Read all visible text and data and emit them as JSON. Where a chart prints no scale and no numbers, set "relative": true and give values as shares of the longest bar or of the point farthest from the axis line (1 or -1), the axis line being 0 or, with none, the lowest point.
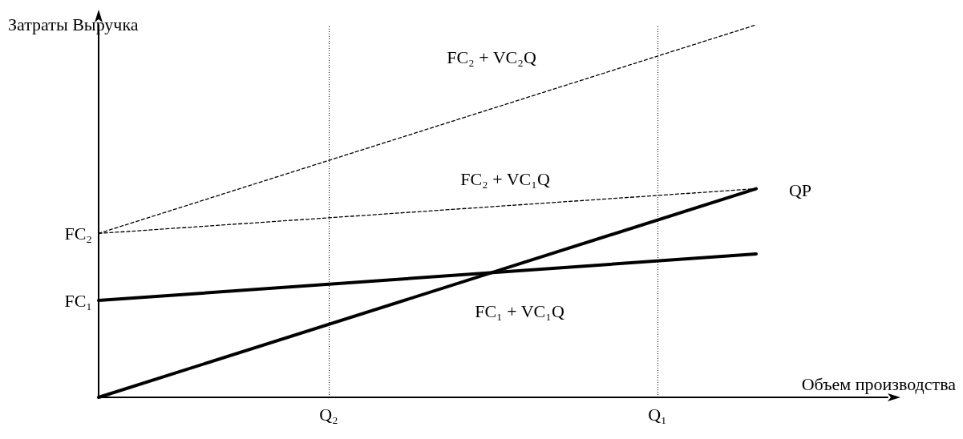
{
  "chart_data": {
    "type": "line",
    "relative": true,
    "xlabel": "Объем производства",
    "ylabel": "Затраты Выручка",
    "tick_labels": "x",
    "grid": false,
    "legend": false,
    "marker": "none",
    "categories": [
      null,
      null,
      null,
      null,
      null,
      null,
      null,
      "Q₂",
      null,
      null,
      null,
      null,
      null,
      null,
      null,
      null,
      null,
      "Q₁",
      null,
      null,
      null,
      null,
      null,
      null,
      null
    ],
    "series": [
      {
        "name": "FC₂ + VC₂Q",
        "color": "#000000",
        "line_style": "dashed",
        "values": [
          0.44,
          null,
          null,
          null,
          null,
          null,
          null,
          null,
          null,
          null,
          null,
          null,
          null,
          null,
          null,
          null,
          null,
          null,
          null,
          null,
          1,
          null,
          null,
          null,
          null
        ]
      },
      {
        "name": "FC₂ + VC₁Q",
        "color": "#000000",
        "line_style": "dashed",
        "values": [
          0.44,
          null,
          null,
          null,
          null,
          null,
          null,
          null,
          null,
          null,
          null,
          null,
          null,
          null,
          null,
          null,
          null,
          null,
          null,
          null,
          0.56,
          null,
          null,
          null,
          null
        ]
      },
      {
        "name": "QP",
        "color": "#000000",
        "line_style": "solid",
        "values": [
          0,
          null,
          null,
          null,
          null,
          null,
          null,
          null,
          null,
          null,
          null,
          null,
          null,
          null,
          null,
          null,
          null,
          null,
          null,
          null,
          0.56,
          null,
          null,
          null,
          null
        ]
      },
      {
        "name": "FC₁ + VC₁Q",
        "color": "#000000",
        "line_style": "solid",
        "values": [
          0.26,
          null,
          null,
          null,
          null,
          null,
          null,
          null,
          null,
          null,
          null,
          null,
          null,
          null,
          null,
          null,
          null,
          null,
          null,
          null,
          0.385,
          null,
          null,
          null,
          null
        ]
      }
    ],
    "ref_lines": [
      {
        "axis": "x",
        "value": "Q₂",
        "line_style": "dotted"
      },
      {
        "axis": "x",
        "value": "Q₁",
        "line_style": "dotted"
      }
    ],
    "annotations": [
      "FC₂",
      "FC₁"
    ]
  }
}
